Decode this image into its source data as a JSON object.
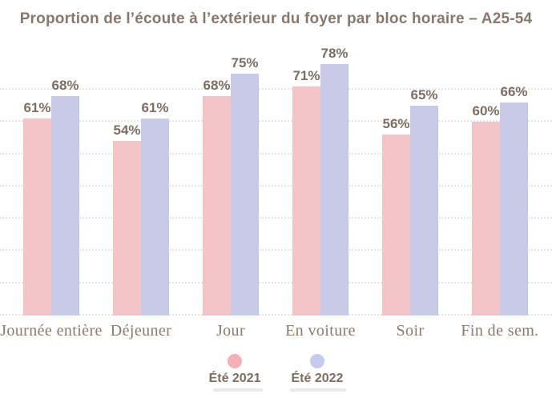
{
  "title": "Proportion de l’écoute à l’extérieur du foyer par bloc horaire – A25-54",
  "chart_data": {
    "type": "bar",
    "title": "Proportion de l’écoute à l’extérieur du foyer par bloc horaire – A25-54",
    "categories": [
      "Journée entière",
      "Déjeuner",
      "Jour",
      "En voiture",
      "Soir",
      "Fin de sem."
    ],
    "series": [
      {
        "name": "Été 2021",
        "color": "#f3c4c6",
        "legend_color": "#f1b1b6",
        "values": [
          61,
          54,
          68,
          71,
          56,
          60
        ]
      },
      {
        "name": "Été 2022",
        "color": "#c7cbe8",
        "legend_color": "#c5c9eb",
        "values": [
          68,
          61,
          75,
          78,
          65,
          66
        ]
      }
    ],
    "value_suffix": "%",
    "xlabel": "",
    "ylabel": "",
    "ylim": [
      0,
      80
    ],
    "gridline_interval": 10,
    "grid": true,
    "grid_style": "dotted",
    "legend_position": "bottom",
    "value_labels_shown": true,
    "colors": {
      "title_text": "#87786e",
      "value_label_text": "#7d6e64",
      "category_label_text": "#8a7a71",
      "gridline": "#ece3e1",
      "background": "#ffffff"
    }
  }
}
